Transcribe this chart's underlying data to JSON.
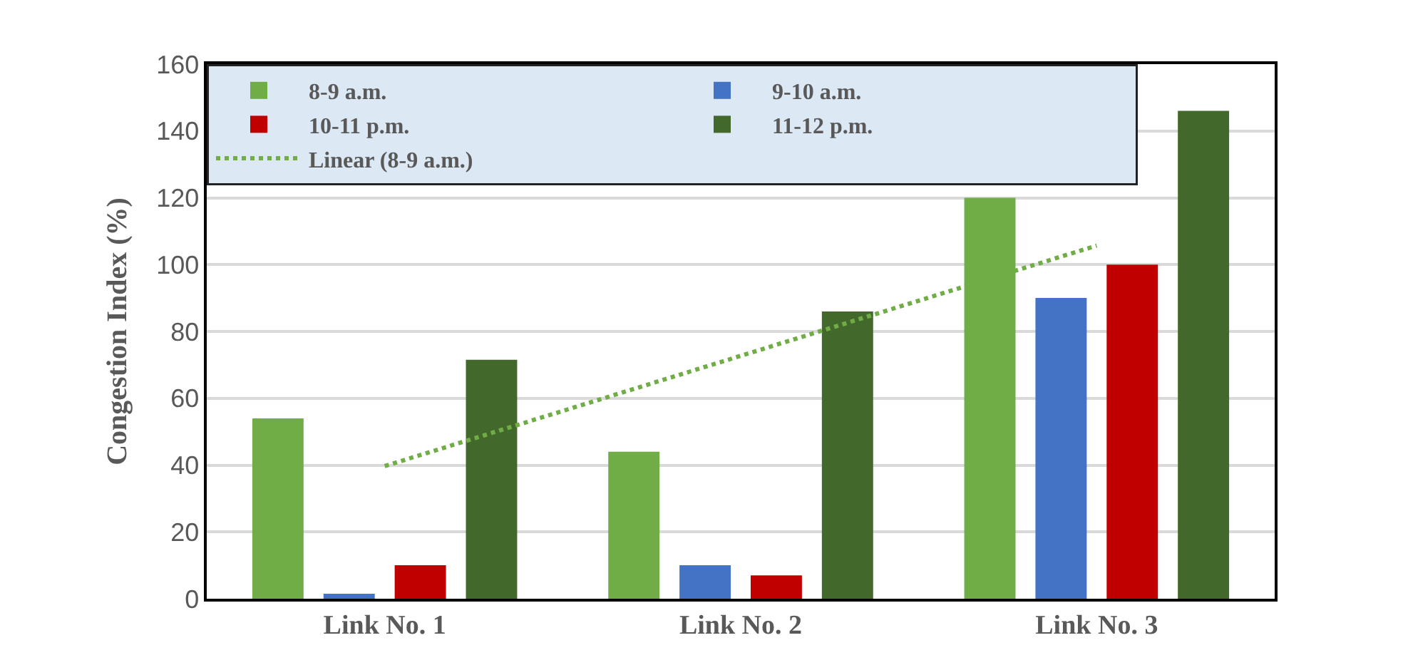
{
  "chart_data": {
    "type": "bar",
    "ylabel": "Congestion Index (%)",
    "categories": [
      "Link No. 1",
      "Link No. 2",
      "Link No. 3"
    ],
    "series": [
      {
        "name": "8-9 a.m.",
        "color": "#70ad47",
        "values": [
          54,
          44,
          120
        ]
      },
      {
        "name": "9-10 a.m.",
        "color": "#4472c4",
        "values": [
          1.5,
          10,
          90
        ]
      },
      {
        "name": "10-11 p.m.",
        "color": "#c00000",
        "values": [
          10,
          7,
          100
        ]
      },
      {
        "name": "11-12 p.m.",
        "color": "#43682b",
        "values": [
          71.5,
          86,
          146
        ]
      },
      {
        "name": "Linear (8-9 a.m.)",
        "type": "line",
        "line_style": "dotted",
        "color": "#70ad47",
        "values": [
          39.7,
          72.7,
          105.7
        ]
      }
    ],
    "ylim": [
      0,
      160
    ],
    "yticks": [
      0,
      20,
      40,
      60,
      80,
      100,
      120,
      140,
      160
    ],
    "grid": "y",
    "legend": "top left"
  }
}
